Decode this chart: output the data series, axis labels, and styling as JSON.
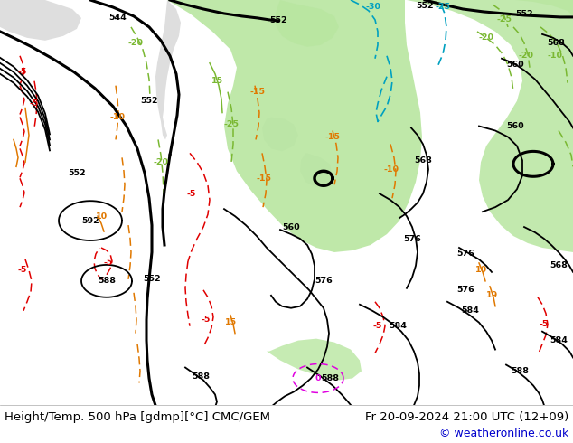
{
  "title_left": "Height/Temp. 500 hPa [gdmp][°C] CMC/GEM",
  "title_right": "Fr 20-09-2024 21:00 UTC (12+09)",
  "copyright": "© weatheronline.co.uk",
  "footer_bg": "#ffffff",
  "footer_text_color": "#000000",
  "copyright_color": "#0000cc",
  "title_font_size": 9.5,
  "copyright_font_size": 9.0,
  "fig_width": 6.34,
  "fig_height": 4.9,
  "dpi": 100,
  "map_bg": "#d4d4d4",
  "green_fill": "#b8e6a0",
  "black": "#000000",
  "green_c": "#7ab832",
  "orange_c": "#e07800",
  "red_c": "#e00000",
  "cyan_c": "#00a0c0",
  "magenta_c": "#e000e0",
  "lw_bold": 2.2,
  "lw_thin": 1.3,
  "lw_temp": 1.1,
  "fs_label": 6.8
}
